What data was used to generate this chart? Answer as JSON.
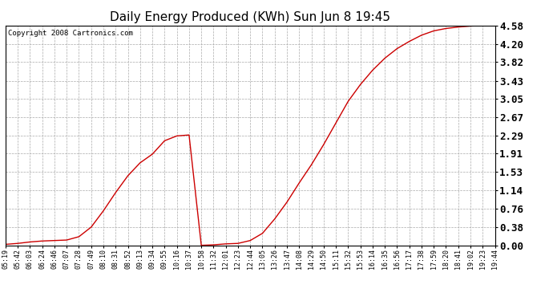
{
  "title": "Daily Energy Produced (KWh) Sun Jun 8 19:45",
  "copyright": "Copyright 2008 Cartronics.com",
  "line_color": "#cc0000",
  "background_color": "#ffffff",
  "plot_bg_color": "#ffffff",
  "grid_color": "#aaaaaa",
  "ylim": [
    0.0,
    4.58
  ],
  "yticks": [
    0.0,
    0.38,
    0.76,
    1.14,
    1.53,
    1.91,
    2.29,
    2.67,
    3.05,
    3.43,
    3.82,
    4.2,
    4.58
  ],
  "x_labels": [
    "05:19",
    "05:42",
    "06:03",
    "06:24",
    "06:46",
    "07:07",
    "07:28",
    "07:49",
    "08:10",
    "08:31",
    "08:52",
    "09:13",
    "09:34",
    "09:55",
    "10:16",
    "10:37",
    "10:58",
    "11:32",
    "12:01",
    "12:23",
    "12:44",
    "13:05",
    "13:26",
    "13:47",
    "14:08",
    "14:29",
    "14:50",
    "15:11",
    "15:32",
    "15:53",
    "16:14",
    "16:35",
    "16:56",
    "17:17",
    "17:38",
    "17:59",
    "18:20",
    "18:41",
    "19:02",
    "19:23",
    "19:44"
  ],
  "data_values": [
    0.02,
    0.04,
    0.07,
    0.09,
    0.1,
    0.11,
    0.18,
    0.38,
    0.72,
    1.1,
    1.45,
    1.72,
    1.9,
    2.18,
    2.28,
    2.3,
    0.0,
    0.01,
    0.03,
    0.04,
    0.1,
    0.25,
    0.55,
    0.9,
    1.3,
    1.68,
    2.1,
    2.55,
    3.0,
    3.35,
    3.65,
    3.9,
    4.1,
    4.25,
    4.38,
    4.47,
    4.52,
    4.55,
    4.57,
    4.58,
    4.58
  ],
  "title_fontsize": 11,
  "ytick_fontsize": 9,
  "xtick_fontsize": 6,
  "copyright_fontsize": 6.5
}
